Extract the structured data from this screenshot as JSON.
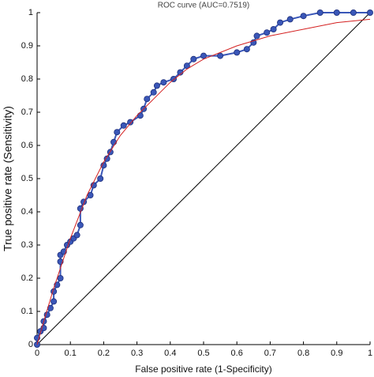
{
  "chart_data": {
    "type": "line",
    "title": "ROC curve (AUC=0.7519)",
    "xlabel": "False positive rate (1-Specificity)",
    "ylabel": "True positive rate (Sensitivity)",
    "xlim": [
      0,
      1
    ],
    "ylim": [
      0,
      1
    ],
    "xticks": [
      0,
      0.1,
      0.2,
      0.3,
      0.4,
      0.5,
      0.6,
      0.7,
      0.8,
      0.9,
      1
    ],
    "yticks": [
      0,
      0.1,
      0.2,
      0.3,
      0.4,
      0.5,
      0.6,
      0.7,
      0.8,
      0.9,
      1
    ],
    "grid": false,
    "series": [
      {
        "color": "#000000",
        "x": [
          0,
          1
        ],
        "values": [
          0,
          1
        ]
      },
      {
        "color": "#3a57b8",
        "marker": "o",
        "x": [
          0,
          0,
          0.01,
          0.02,
          0.02,
          0.03,
          0.04,
          0.05,
          0.05,
          0.06,
          0.07,
          0.07,
          0.07,
          0.08,
          0.09,
          0.1,
          0.11,
          0.12,
          0.13,
          0.13,
          0.14,
          0.16,
          0.17,
          0.19,
          0.2,
          0.21,
          0.22,
          0.23,
          0.24,
          0.26,
          0.28,
          0.31,
          0.32,
          0.33,
          0.35,
          0.36,
          0.38,
          0.41,
          0.43,
          0.45,
          0.47,
          0.5,
          0.55,
          0.6,
          0.63,
          0.65,
          0.66,
          0.69,
          0.71,
          0.73,
          0.76,
          0.8,
          0.85,
          0.9,
          0.95,
          1
        ],
        "values": [
          0,
          0.02,
          0.04,
          0.05,
          0.07,
          0.09,
          0.11,
          0.13,
          0.16,
          0.18,
          0.2,
          0.25,
          0.27,
          0.28,
          0.3,
          0.31,
          0.32,
          0.33,
          0.36,
          0.41,
          0.43,
          0.45,
          0.48,
          0.5,
          0.54,
          0.56,
          0.58,
          0.61,
          0.64,
          0.66,
          0.67,
          0.69,
          0.71,
          0.74,
          0.76,
          0.78,
          0.79,
          0.8,
          0.82,
          0.84,
          0.86,
          0.87,
          0.87,
          0.88,
          0.89,
          0.91,
          0.93,
          0.94,
          0.95,
          0.97,
          0.98,
          0.99,
          1,
          1,
          1,
          1
        ]
      },
      {
        "color": "#d42020",
        "x": [
          0,
          0.02,
          0.05,
          0.1,
          0.15,
          0.2,
          0.25,
          0.3,
          0.35,
          0.4,
          0.45,
          0.5,
          0.6,
          0.7,
          0.8,
          0.9,
          1
        ],
        "values": [
          0,
          0.07,
          0.17,
          0.32,
          0.45,
          0.55,
          0.63,
          0.69,
          0.74,
          0.79,
          0.83,
          0.86,
          0.9,
          0.93,
          0.95,
          0.97,
          0.98
        ]
      }
    ]
  }
}
